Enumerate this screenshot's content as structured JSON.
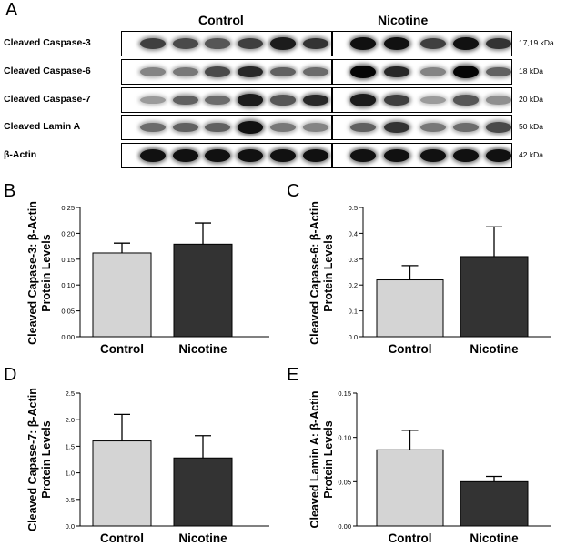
{
  "figure_label": "A",
  "western_blot": {
    "groups": [
      "Control",
      "Nicotine"
    ],
    "rows": [
      {
        "label": "Cleaved Caspase-3",
        "kda": "17,19  kDa",
        "bands": [
          0.75,
          0.7,
          0.65,
          0.75,
          0.9,
          0.8,
          0.95,
          0.95,
          0.75,
          0.95,
          0.8
        ]
      },
      {
        "label": "Cleaved Caspase-6",
        "kda": "18 kDa",
        "bands": [
          0.45,
          0.5,
          0.7,
          0.85,
          0.6,
          0.55,
          1.0,
          0.85,
          0.45,
          1.0,
          0.6
        ]
      },
      {
        "label": "Cleaved Caspase-7",
        "kda": "20 kDa",
        "bands": [
          0.35,
          0.6,
          0.55,
          0.9,
          0.65,
          0.85,
          0.9,
          0.75,
          0.35,
          0.65,
          0.4
        ]
      },
      {
        "label": "Cleaved Lamin A",
        "kda": "50 kDa",
        "bands": [
          0.55,
          0.6,
          0.6,
          0.95,
          0.5,
          0.45,
          0.6,
          0.8,
          0.5,
          0.55,
          0.7
        ]
      },
      {
        "label": "β-Actin",
        "kda": "42 kDa",
        "bands": [
          0.95,
          0.95,
          0.95,
          0.95,
          0.95,
          0.95,
          0.95,
          0.95,
          0.95,
          0.95,
          0.95
        ]
      }
    ]
  },
  "chart_data": [
    {
      "letter": "B",
      "type": "bar",
      "categories": [
        "Control",
        "Nicotine"
      ],
      "values": [
        0.162,
        0.179
      ],
      "errors": [
        0.019,
        0.041
      ],
      "colors": [
        "#d4d4d4",
        "#333333"
      ],
      "ylabel": [
        "Cleaved Capase-3: β-Actin",
        "Protein Levels"
      ],
      "ylim": [
        0,
        0.25
      ],
      "yticks": [
        "0.00",
        "0.05",
        "0.10",
        "0.15",
        "0.20",
        "0.25"
      ]
    },
    {
      "letter": "C",
      "type": "bar",
      "categories": [
        "Control",
        "Nicotine"
      ],
      "values": [
        0.22,
        0.31
      ],
      "errors": [
        0.055,
        0.115
      ],
      "colors": [
        "#d4d4d4",
        "#333333"
      ],
      "ylabel": [
        "Cleaved Capase-6: β-Actin",
        "Protein Levels"
      ],
      "ylim": [
        0,
        0.5
      ],
      "yticks": [
        "0.0",
        "0.1",
        "0.2",
        "0.3",
        "0.4",
        "0.5"
      ]
    },
    {
      "letter": "D",
      "type": "bar",
      "categories": [
        "Control",
        "Nicotine"
      ],
      "values": [
        1.6,
        1.28
      ],
      "errors": [
        0.5,
        0.42
      ],
      "colors": [
        "#d4d4d4",
        "#333333"
      ],
      "ylabel": [
        "Cleaved Capase-7: β-Actin",
        "Protein Levels"
      ],
      "ylim": [
        0,
        2.5
      ],
      "yticks": [
        "0.0",
        "0.5",
        "1.0",
        "1.5",
        "2.0",
        "2.5"
      ]
    },
    {
      "letter": "E",
      "type": "bar",
      "categories": [
        "Control",
        "Nicotine"
      ],
      "values": [
        0.086,
        0.05
      ],
      "errors": [
        0.022,
        0.006
      ],
      "colors": [
        "#d4d4d4",
        "#333333"
      ],
      "ylabel": [
        "Cleaved Lamin A: β-Actin",
        "Protein Levels"
      ],
      "ylim": [
        0,
        0.15
      ],
      "yticks": [
        "0.00",
        "0.05",
        "0.10",
        "0.15"
      ]
    }
  ]
}
